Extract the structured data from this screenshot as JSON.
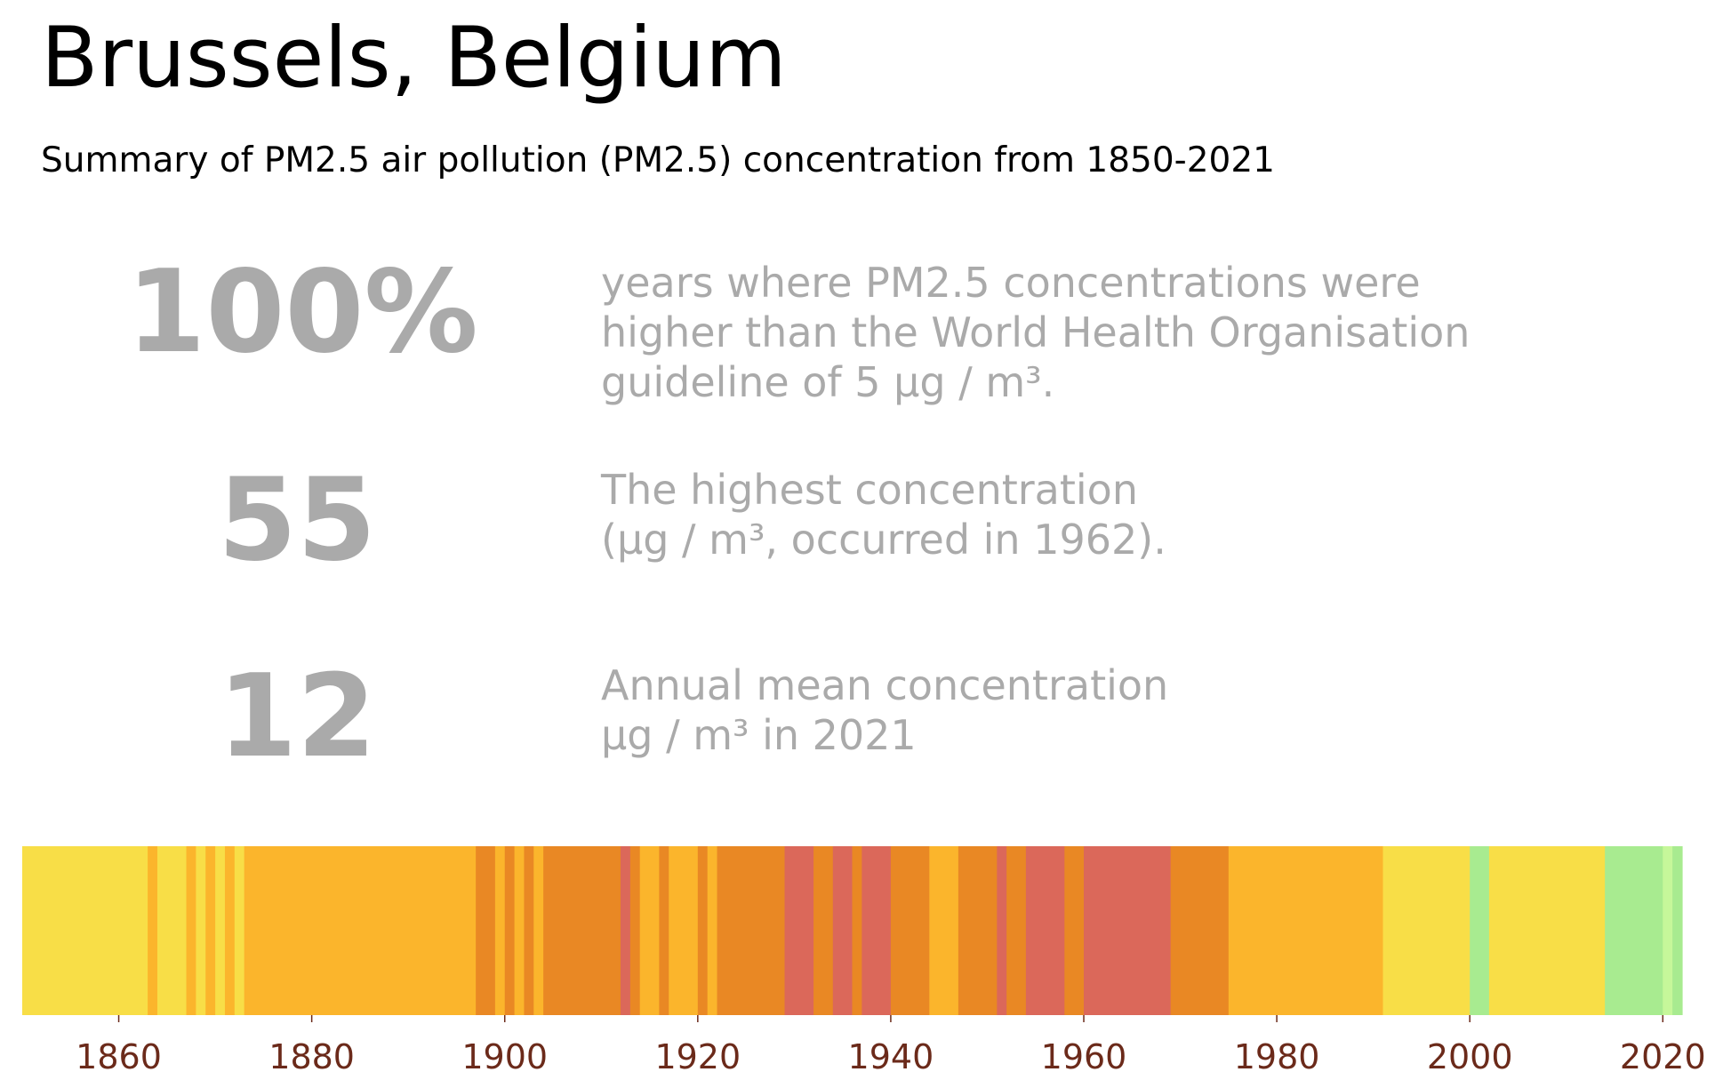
{
  "title": "Brussels, Belgium",
  "subtitle": "Summary of PM2.5 air pollution (PM2.5) concentration from 1850-2021",
  "stats": [
    {
      "value": "100%",
      "lines": [
        "years where PM2.5 concentrations were",
        "higher than the World Health Organisation",
        "guideline of 5 μg / m³."
      ]
    },
    {
      "value": "55",
      "lines": [
        "The highest concentration",
        "(μg / m³, occurred in 1962)."
      ]
    },
    {
      "value": "12",
      "lines": [
        "Annual mean concentration",
        "μg / m³ in 2021"
      ]
    }
  ],
  "chart_data": {
    "type": "heatmap",
    "x_range": [
      1850,
      2022
    ],
    "x_ticks": [
      1860,
      1880,
      1900,
      1920,
      1940,
      1960,
      1980,
      2000,
      2020
    ],
    "color_classes": {
      "green": "#a8eb90",
      "light_green": "#c6f79a",
      "yellow": "#f8de47",
      "light_orange": "#fbb52c",
      "orange": "#e98824",
      "red": "#db685a"
    },
    "stripes": [
      {
        "from": 1850,
        "to": 1863,
        "class": "yellow"
      },
      {
        "from": 1863,
        "to": 1864,
        "class": "light_orange"
      },
      {
        "from": 1864,
        "to": 1867,
        "class": "yellow"
      },
      {
        "from": 1867,
        "to": 1868,
        "class": "light_orange"
      },
      {
        "from": 1868,
        "to": 1869,
        "class": "yellow"
      },
      {
        "from": 1869,
        "to": 1870,
        "class": "light_orange"
      },
      {
        "from": 1870,
        "to": 1871,
        "class": "yellow"
      },
      {
        "from": 1871,
        "to": 1872,
        "class": "light_orange"
      },
      {
        "from": 1872,
        "to": 1873,
        "class": "yellow"
      },
      {
        "from": 1873,
        "to": 1897,
        "class": "light_orange"
      },
      {
        "from": 1897,
        "to": 1899,
        "class": "orange"
      },
      {
        "from": 1899,
        "to": 1900,
        "class": "light_orange"
      },
      {
        "from": 1900,
        "to": 1901,
        "class": "orange"
      },
      {
        "from": 1901,
        "to": 1902,
        "class": "light_orange"
      },
      {
        "from": 1902,
        "to": 1903,
        "class": "orange"
      },
      {
        "from": 1903,
        "to": 1904,
        "class": "light_orange"
      },
      {
        "from": 1904,
        "to": 1912,
        "class": "orange"
      },
      {
        "from": 1912,
        "to": 1913,
        "class": "red"
      },
      {
        "from": 1913,
        "to": 1914,
        "class": "orange"
      },
      {
        "from": 1914,
        "to": 1916,
        "class": "light_orange"
      },
      {
        "from": 1916,
        "to": 1917,
        "class": "orange"
      },
      {
        "from": 1917,
        "to": 1920,
        "class": "light_orange"
      },
      {
        "from": 1920,
        "to": 1921,
        "class": "orange"
      },
      {
        "from": 1921,
        "to": 1922,
        "class": "light_orange"
      },
      {
        "from": 1922,
        "to": 1929,
        "class": "orange"
      },
      {
        "from": 1929,
        "to": 1932,
        "class": "red"
      },
      {
        "from": 1932,
        "to": 1934,
        "class": "orange"
      },
      {
        "from": 1934,
        "to": 1936,
        "class": "red"
      },
      {
        "from": 1936,
        "to": 1937,
        "class": "orange"
      },
      {
        "from": 1937,
        "to": 1940,
        "class": "red"
      },
      {
        "from": 1940,
        "to": 1944,
        "class": "orange"
      },
      {
        "from": 1944,
        "to": 1947,
        "class": "light_orange"
      },
      {
        "from": 1947,
        "to": 1951,
        "class": "orange"
      },
      {
        "from": 1951,
        "to": 1952,
        "class": "red"
      },
      {
        "from": 1952,
        "to": 1954,
        "class": "orange"
      },
      {
        "from": 1954,
        "to": 1958,
        "class": "red"
      },
      {
        "from": 1958,
        "to": 1960,
        "class": "orange"
      },
      {
        "from": 1960,
        "to": 1969,
        "class": "red"
      },
      {
        "from": 1969,
        "to": 1975,
        "class": "orange"
      },
      {
        "from": 1975,
        "to": 1991,
        "class": "light_orange"
      },
      {
        "from": 1991,
        "to": 2000,
        "class": "yellow"
      },
      {
        "from": 2000,
        "to": 2002,
        "class": "green"
      },
      {
        "from": 2002,
        "to": 2014,
        "class": "yellow"
      },
      {
        "from": 2014,
        "to": 2020,
        "class": "green"
      },
      {
        "from": 2020,
        "to": 2021,
        "class": "light_green"
      },
      {
        "from": 2021,
        "to": 2022,
        "class": "green"
      }
    ]
  }
}
